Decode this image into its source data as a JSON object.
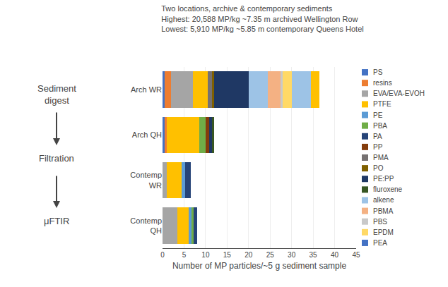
{
  "chart_data": {
    "type": "bar",
    "orientation": "horizontal",
    "stacked": true,
    "title": "Two locations, archive & contemporary sediments\nHighest: 20,588 MP/kg ~7.35 m archived Wellington Row\nLowest: 5,910 MP/kg ~5.85 m contemporary Queens Hotel",
    "annotations": [
      "Sediment\ndigest",
      "Filtration",
      "μFTIR"
    ],
    "categories": [
      "Contemp\nQH",
      "Contemp\nWR",
      "Arch QH",
      "Arch WR"
    ],
    "series": [
      {
        "name": "PS",
        "color": "#4472C4",
        "values": [
          null,
          null,
          0.5,
          0.5
        ]
      },
      {
        "name": "resins",
        "color": "#ED7D31",
        "values": [
          null,
          null,
          0.5,
          1.5
        ]
      },
      {
        "name": "EVA/EVA-EVOH",
        "color": "#A5A5A5",
        "values": [
          3.5,
          1.0,
          null,
          5.0
        ]
      },
      {
        "name": "PTFE",
        "color": "#FFC000",
        "values": [
          2.5,
          3.5,
          7.5,
          3.5
        ]
      },
      {
        "name": "PE",
        "color": "#5B9BD5",
        "values": [
          0.8,
          0.8,
          null,
          null
        ]
      },
      {
        "name": "PBA",
        "color": "#70AD47",
        "values": [
          0.5,
          null,
          1.5,
          null
        ]
      },
      {
        "name": "PA",
        "color": "#264478",
        "values": [
          0.7,
          1.2,
          null,
          null
        ]
      },
      {
        "name": "PP",
        "color": "#843C0C",
        "values": [
          null,
          null,
          0.8,
          null
        ]
      },
      {
        "name": "PMA",
        "color": "#767171",
        "values": [
          null,
          null,
          null,
          1.0
        ]
      },
      {
        "name": "PO",
        "color": "#7F6000",
        "values": [
          null,
          null,
          null,
          0.5
        ]
      },
      {
        "name": "PE:PP",
        "color": "#1F3864",
        "values": [
          null,
          null,
          0.7,
          8.0
        ]
      },
      {
        "name": "fluroxene",
        "color": "#375623",
        "values": [
          null,
          null,
          0.5,
          null
        ]
      },
      {
        "name": "alkene",
        "color": "#9DC3E6",
        "values": [
          null,
          null,
          null,
          4.5
        ]
      },
      {
        "name": "PBMA",
        "color": "#F4B183",
        "values": [
          null,
          null,
          null,
          3.0
        ]
      },
      {
        "name": "PBS",
        "color": "#C9C9C9",
        "values": [
          null,
          null,
          null,
          0.5
        ]
      },
      {
        "name": "EPDM",
        "color": "#FFD966",
        "values": [
          null,
          null,
          null,
          2.0
        ]
      },
      {
        "name": "PEA",
        "color": "#4472C4",
        "values": [
          null,
          null,
          null,
          null
        ]
      },
      {
        "name": "alkene",
        "color": "#9DC3E6",
        "values": [
          null,
          null,
          null,
          4.5
        ]
      },
      {
        "name": "PTFE",
        "color": "#FFC000",
        "values": [
          null,
          null,
          null,
          2.0
        ]
      }
    ],
    "xlabel": "Number of MP particles/~5 g sediment sample",
    "xlim": [
      0,
      45
    ],
    "xticks": [
      0,
      5,
      10,
      15,
      20,
      25,
      30,
      35,
      40,
      45
    ],
    "grid": true
  }
}
